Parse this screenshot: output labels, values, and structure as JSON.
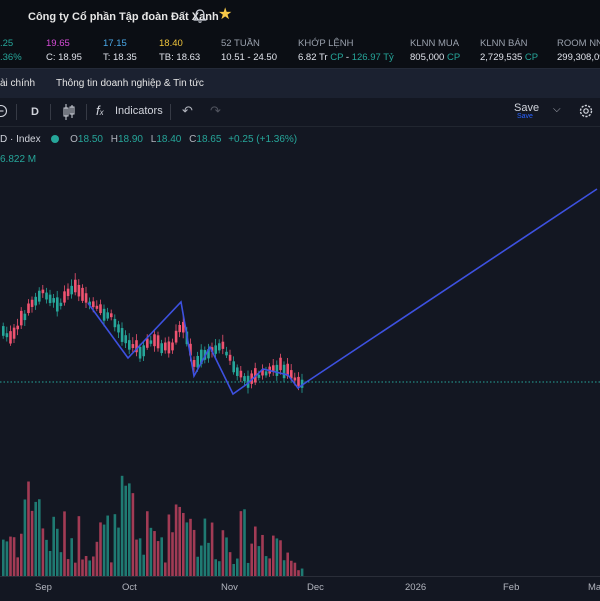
{
  "header": {
    "company": "Công ty Cổ phần Tập đoàn Đất Xanh"
  },
  "quote": {
    "v1": ".25",
    "v1b": ".36%",
    "ceil": "19.65",
    "ref": "C: 18.95",
    "floor": "17.15",
    "low": "T: 18.35",
    "avg_top": "18.40",
    "avg": "TB: 18.63",
    "w52_label": "52 TUẦN",
    "w52_value": "10.51 - 24.50",
    "match_label": "KHỚP LỆNH",
    "match_vol": "6.82 Tr",
    "match_cp": "CP",
    "match_sep": "-",
    "match_val": "126.97 Tỷ",
    "buy_label": "KLNN MUA",
    "buy_value": "805,000",
    "buy_unit": "CP",
    "sell_label": "KLNN BÁN",
    "sell_value": "2,729,535",
    "sell_unit": "CP",
    "room_label": "ROOM NN",
    "room_value": "299,308,09"
  },
  "tabs": {
    "t1": "ài chính",
    "t2": "Thông tin doanh nghiệp & Tin tức"
  },
  "toolbar": {
    "interval": "D",
    "indicators": "Indicators",
    "save": "Save",
    "save_sub": "Save"
  },
  "legend": {
    "symbol": "D · Index",
    "o_l": "O",
    "o_v": "18.50",
    "h_l": "H",
    "h_v": "18.90",
    "l_l": "L",
    "l_v": "18.40",
    "c_l": "C",
    "c_v": "18.65",
    "chg": "+0.25 (+1.36%)",
    "volume": "6.822 M"
  },
  "axis": {
    "labels": [
      "Sep",
      "Oct",
      "Nov",
      "Dec",
      "2026",
      "Feb",
      "Ma"
    ]
  },
  "colors": {
    "up": "#26a69a",
    "down": "#ef5370",
    "trend": "#3d51e0",
    "price_line": "#26a69a"
  }
}
